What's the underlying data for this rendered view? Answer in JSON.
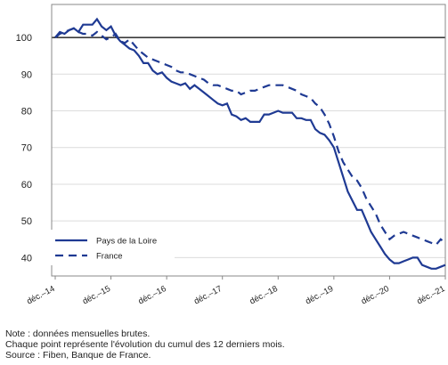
{
  "chart_data": {
    "type": "line",
    "categories": [
      "déc.–14",
      null,
      null,
      null,
      null,
      null,
      null,
      null,
      null,
      null,
      null,
      null,
      "déc.–15",
      null,
      null,
      null,
      null,
      null,
      null,
      null,
      null,
      null,
      null,
      null,
      "déc.–16",
      null,
      null,
      null,
      null,
      null,
      null,
      null,
      null,
      null,
      null,
      null,
      "déc.–17",
      null,
      null,
      null,
      null,
      null,
      null,
      null,
      null,
      null,
      null,
      null,
      "déc.–18",
      null,
      null,
      null,
      null,
      null,
      null,
      null,
      null,
      null,
      null,
      null,
      "déc.–19",
      null,
      null,
      null,
      null,
      null,
      null,
      null,
      null,
      null,
      null,
      null,
      "déc.–20",
      null,
      null,
      null,
      null,
      null,
      null,
      null,
      null,
      null,
      null,
      null,
      "déc.–21"
    ],
    "series": [
      {
        "name": "Pays de la Loire",
        "color": "#1f3a93",
        "dash": false,
        "values": [
          100,
          101.5,
          101,
          102,
          102.5,
          101.5,
          103.5,
          103.5,
          103.5,
          105,
          103,
          102,
          103,
          100.5,
          99,
          98,
          97,
          96.5,
          95,
          93,
          93,
          91,
          90,
          90.5,
          89,
          88,
          87.5,
          87,
          87.5,
          86,
          87,
          86,
          85,
          84,
          83,
          82,
          81.5,
          82,
          79,
          78.5,
          77.5,
          78,
          77,
          77,
          77,
          79,
          79,
          79.5,
          80,
          79.5,
          79.5,
          79.5,
          78,
          78,
          77.5,
          77.5,
          75,
          74,
          73.5,
          72,
          70,
          66,
          62,
          58,
          55.5,
          53,
          53,
          50,
          47,
          45,
          43,
          41,
          39.5,
          38.5,
          38.5,
          39,
          39.5,
          40,
          40,
          38,
          37.5,
          37,
          37,
          37.5,
          38
        ]
      },
      {
        "name": "France",
        "color": "#1f3a93",
        "dash": true,
        "values": [
          100,
          101,
          101.5,
          102,
          102.5,
          101.5,
          101,
          101,
          100.5,
          101.5,
          100.5,
          99.5,
          100,
          101,
          99,
          98.5,
          99.5,
          98,
          96.5,
          95.5,
          94.5,
          94,
          93.5,
          93,
          92.5,
          92,
          91,
          90.5,
          90.5,
          90,
          89.5,
          89,
          88.5,
          87.5,
          87,
          87,
          86.5,
          86,
          85.5,
          85.5,
          84.5,
          85,
          85.5,
          85.5,
          86,
          86.5,
          87,
          87,
          87,
          87,
          86.5,
          86,
          85.5,
          84.5,
          84,
          83.5,
          82,
          81,
          79,
          76.5,
          73,
          69,
          66,
          64,
          62,
          61,
          59,
          56,
          54,
          52,
          49,
          47,
          45,
          46,
          46.5,
          47,
          46.5,
          46,
          45.5,
          45,
          44.5,
          44,
          43.5,
          45,
          44
        ]
      }
    ],
    "ylim": [
      35,
      109
    ],
    "yticks": [
      40,
      50,
      60,
      70,
      80,
      90,
      100
    ],
    "grid": true,
    "reference_line": 100,
    "legend": "lower left",
    "notes": [
      "Note : données mensuelles brutes.",
      "Chaque point représente l'évolution du cumul des 12 derniers mois.",
      "Source : Fiben, Banque de France."
    ]
  }
}
